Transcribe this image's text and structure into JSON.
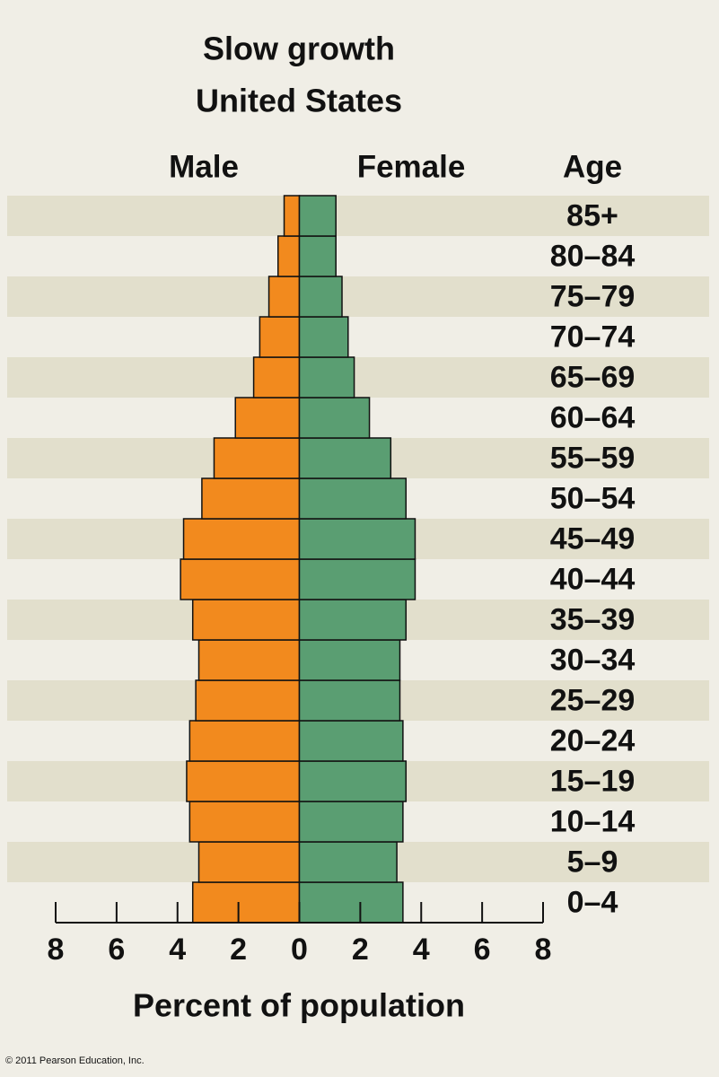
{
  "chart_data": {
    "type": "pyramid",
    "title": "Slow growth",
    "subtitle": "United States",
    "y_label": "Age",
    "x_label": "Percent of population",
    "annotation": "© 2011 Pearson Education, Inc.",
    "categories": [
      "0–4",
      "5–9",
      "10–14",
      "15–19",
      "20–24",
      "25–29",
      "30–34",
      "35–39",
      "40–44",
      "45–49",
      "50–54",
      "55–59",
      "60–64",
      "65–69",
      "70–74",
      "75–79",
      "80–84",
      "85+"
    ],
    "series": [
      {
        "name": "Male",
        "color": "#f28a1e",
        "side": "left",
        "values": [
          3.5,
          3.3,
          3.6,
          3.7,
          3.6,
          3.4,
          3.3,
          3.5,
          3.9,
          3.8,
          3.2,
          2.8,
          2.1,
          1.5,
          1.3,
          1.0,
          0.7,
          0.5
        ]
      },
      {
        "name": "Female",
        "color": "#5a9e72",
        "side": "right",
        "values": [
          3.4,
          3.2,
          3.4,
          3.5,
          3.4,
          3.3,
          3.3,
          3.5,
          3.8,
          3.8,
          3.5,
          3.0,
          2.3,
          1.8,
          1.6,
          1.4,
          1.2,
          1.2
        ]
      }
    ],
    "xlim": [
      -8,
      8
    ],
    "xticks": [
      {
        "value": -8,
        "label": "8"
      },
      {
        "value": -6,
        "label": "6"
      },
      {
        "value": -4,
        "label": "4"
      },
      {
        "value": -2,
        "label": "2"
      },
      0,
      2,
      4,
      6,
      8
    ]
  }
}
